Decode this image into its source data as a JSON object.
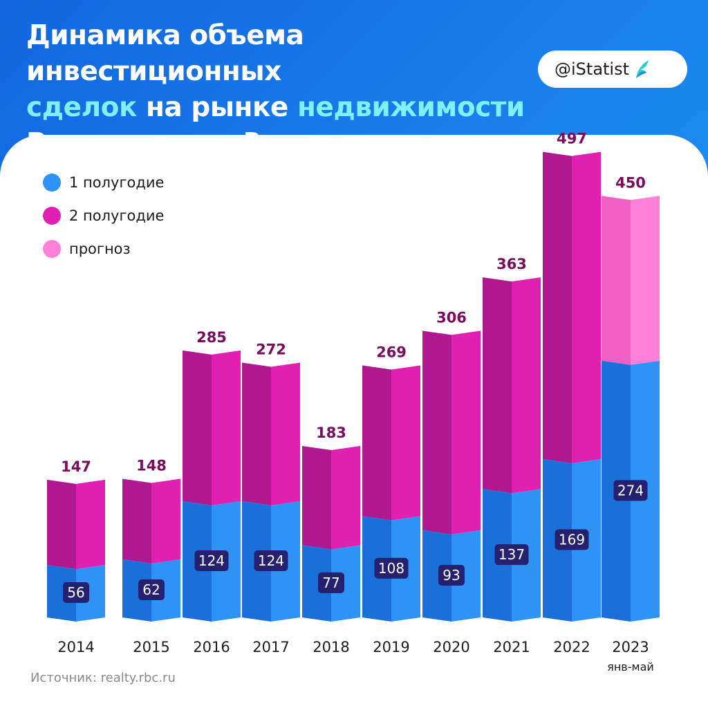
{
  "header": {
    "title_line1": "Динамика объема инвестиционных",
    "title_line2_a": "сделок",
    "title_line2_b": " на рынке ",
    "title_line2_c": "недвижимости",
    "title_line3": "России, млрд ₽",
    "badge": "@iStatist",
    "badge_icon": "istatist-logo-icon"
  },
  "legend": [
    {
      "label": "1 полугодие",
      "color": "#2f93f5"
    },
    {
      "label": "2 полугодие",
      "color": "#e020b0"
    },
    {
      "label": "прогноз",
      "color": "#ff80d6"
    }
  ],
  "chart_data": {
    "type": "bar",
    "stacked": true,
    "title": "Динамика объема инвестиционных сделок на рынке недвижимости России, млрд ₽",
    "xlabel": "",
    "ylabel": "",
    "categories": [
      "2014",
      "2015",
      "2016",
      "2017",
      "2018",
      "2019",
      "2020",
      "2021",
      "2022",
      "2023"
    ],
    "category_sublabels": [
      "",
      "",
      "",
      "",
      "",
      "",
      "",
      "",
      "",
      "янв-май"
    ],
    "series": [
      {
        "name": "1 полугодие",
        "values": [
          56,
          62,
          124,
          124,
          77,
          108,
          93,
          137,
          169,
          274
        ],
        "color": "#2f93f5"
      },
      {
        "name": "2 полугодие",
        "values": [
          91,
          86,
          161,
          148,
          106,
          161,
          213,
          226,
          328,
          null
        ],
        "color": "#e020b0"
      },
      {
        "name": "прогноз",
        "values": [
          null,
          null,
          null,
          null,
          null,
          null,
          null,
          null,
          null,
          176
        ],
        "color": "#ff80d6"
      }
    ],
    "totals": [
      147,
      148,
      285,
      272,
      183,
      269,
      306,
      363,
      497,
      450
    ],
    "ylim": [
      0,
      500
    ],
    "grid": false,
    "legend_position": "top-left"
  },
  "source": "Источник: realty.rbc.ru"
}
